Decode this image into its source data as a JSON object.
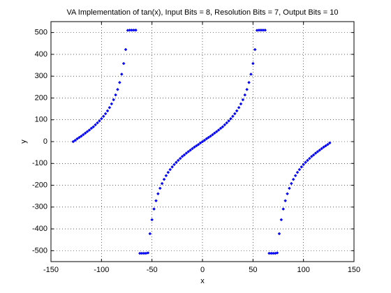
{
  "chart_data": {
    "type": "scatter",
    "title": "VA Implementation of tan(x), Input Bits = 8, Resolution Bits = 7, Output Bits = 10",
    "x_label": "x",
    "y_label": "y",
    "color": "#0000ff",
    "x": [
      -128,
      -126,
      -124,
      -122,
      -120,
      -118,
      -116,
      -114,
      -112,
      -110,
      -108,
      -106,
      -104,
      -102,
      -100,
      -98,
      -96,
      -94,
      -92,
      -90,
      -88,
      -86,
      -84,
      -82,
      -80,
      -78,
      -76,
      -74,
      -72,
      -70,
      -68,
      -66,
      -62,
      -60,
      -58,
      -56,
      -54,
      -52,
      -50,
      -48,
      -46,
      -44,
      -42,
      -40,
      -38,
      -36,
      -34,
      -32,
      -30,
      -28,
      -26,
      -24,
      -22,
      -20,
      -18,
      -16,
      -14,
      -12,
      -10,
      -8,
      -6,
      -4,
      -2,
      0,
      2,
      4,
      6,
      8,
      10,
      12,
      14,
      16,
      18,
      20,
      22,
      24,
      26,
      28,
      30,
      32,
      34,
      36,
      38,
      40,
      42,
      44,
      46,
      48,
      50,
      52,
      54,
      56,
      58,
      60,
      62,
      66,
      68,
      70,
      72,
      74,
      76,
      78,
      80,
      82,
      84,
      86,
      88,
      90,
      92,
      94,
      96,
      98,
      100,
      102,
      104,
      106,
      108,
      110,
      112,
      114,
      116,
      118,
      120,
      122,
      124,
      126
    ],
    "values": [
      0,
      6,
      13,
      19,
      25,
      32,
      39,
      46,
      53,
      61,
      68,
      77,
      86,
      95,
      105,
      116,
      128,
      141,
      156,
      173,
      192,
      214,
      239,
      271,
      309,
      358,
      422,
      510,
      511,
      511,
      511,
      511,
      -512,
      -512,
      -512,
      -512,
      -510,
      -422,
      -358,
      -309,
      -271,
      -239,
      -214,
      -192,
      -173,
      -156,
      -141,
      -128,
      -116,
      -105,
      -95,
      -86,
      -77,
      -68,
      -61,
      -53,
      -46,
      -39,
      -32,
      -25,
      -19,
      -13,
      -6,
      0,
      6,
      13,
      19,
      25,
      32,
      39,
      46,
      53,
      61,
      68,
      77,
      86,
      95,
      105,
      116,
      128,
      141,
      156,
      173,
      192,
      214,
      239,
      271,
      309,
      358,
      422,
      510,
      511,
      511,
      511,
      511,
      -512,
      -512,
      -512,
      -512,
      -510,
      -422,
      -358,
      -309,
      -271,
      -239,
      -214,
      -192,
      -173,
      -156,
      -141,
      -128,
      -116,
      -105,
      -95,
      -86,
      -77,
      -68,
      -61,
      -53,
      -46,
      -39,
      -32,
      -25,
      -19,
      -13,
      -6
    ],
    "xlim": [
      -150,
      150
    ],
    "xticks": [
      -150,
      -100,
      -50,
      0,
      50,
      100,
      150
    ],
    "ylim": [
      -550,
      550
    ],
    "yticks": [
      -500,
      -400,
      -300,
      -200,
      -100,
      0,
      100,
      200,
      300,
      400,
      500
    ],
    "grid": true
  }
}
